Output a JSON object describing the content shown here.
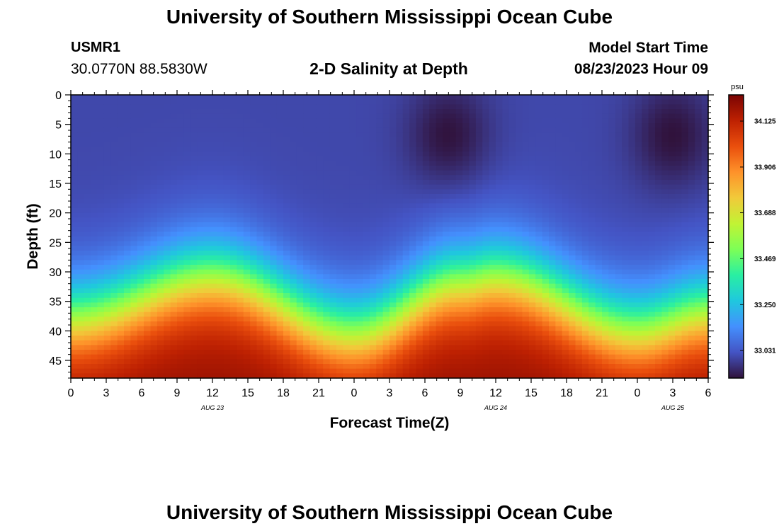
{
  "header": {
    "title": "University of Southern Mississippi Ocean Cube",
    "station": "USMR1",
    "coordinates": "30.0770N  88.5830W",
    "subtitle": "2-D Salinity at Depth",
    "model_start_label": "Model Start Time",
    "model_start_value": "08/23/2023 Hour 09"
  },
  "footer": {
    "title": "University of Southern Mississippi Ocean Cube"
  },
  "chart_data": {
    "type": "heatmap",
    "title": "2-D Salinity at Depth",
    "xlabel": "Forecast Time(Z)",
    "ylabel": "Depth (ft)",
    "x_range_hours": [
      0,
      54
    ],
    "y_range_ft": [
      0,
      48
    ],
    "x_ticks": [
      "0",
      "3",
      "6",
      "9",
      "12",
      "15",
      "18",
      "21",
      "0",
      "3",
      "6",
      "9",
      "12",
      "15",
      "18",
      "21",
      "0",
      "3",
      "6"
    ],
    "y_ticks": [
      "0",
      "5",
      "10",
      "15",
      "20",
      "25",
      "30",
      "35",
      "40",
      "45"
    ],
    "date_labels": [
      {
        "text": "AUG 23",
        "hour": 12
      },
      {
        "text": "AUG 24",
        "hour": 36
      },
      {
        "text": "AUG 25",
        "hour": 51
      }
    ],
    "colorbar": {
      "unit": "psu",
      "min": 32.9,
      "max": 34.25,
      "ticks": [
        "34.125",
        "33.906",
        "33.688",
        "33.469",
        "33.250",
        "33.031"
      ],
      "colors": [
        "#30123b",
        "#4454c4",
        "#4490fe",
        "#1fc8de",
        "#29efa2",
        "#7dff56",
        "#c1f334",
        "#f1ca3a",
        "#fe922a",
        "#ea4f0d",
        "#be2102",
        "#7a0403"
      ]
    },
    "halocline_depth_ft": [
      {
        "hour": 0,
        "depth": 38
      },
      {
        "hour": 12,
        "depth": 31
      },
      {
        "hour": 24,
        "depth": 40.5
      },
      {
        "hour": 33,
        "depth": 32
      },
      {
        "hour": 36,
        "depth": 31
      },
      {
        "hour": 48,
        "depth": 40
      },
      {
        "hour": 54,
        "depth": 37
      }
    ],
    "surface_salinity_psu": 33.0,
    "bottom_salinity_psu": 34.2,
    "low_salinity_cores": [
      {
        "hour": 32,
        "depth": 7,
        "value_psu": 32.9
      },
      {
        "hour": 51,
        "depth": 7,
        "value_psu": 32.9
      }
    ]
  }
}
